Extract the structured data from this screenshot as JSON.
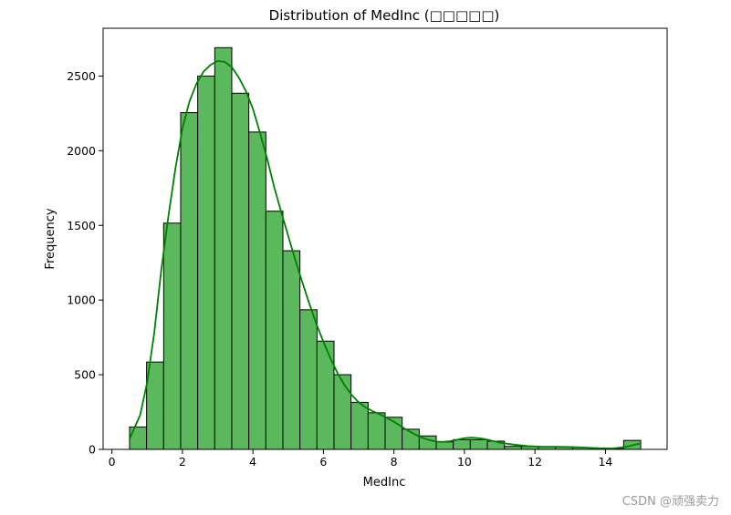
{
  "chart_data": {
    "type": "bar",
    "title": "Distribution of MedInc (□□□□□)",
    "xlabel": "MedInc",
    "ylabel": "Frequency",
    "xlim": [
      -0.25,
      15.75
    ],
    "ylim": [
      0,
      2820
    ],
    "xticks": [
      0,
      2,
      4,
      6,
      8,
      10,
      12,
      14
    ],
    "yticks": [
      0,
      500,
      1000,
      1500,
      2000,
      2500
    ],
    "bins": [
      {
        "x0": 0.5,
        "x1": 0.983,
        "count": 150
      },
      {
        "x0": 0.983,
        "x1": 1.467,
        "count": 585
      },
      {
        "x0": 1.467,
        "x1": 1.95,
        "count": 1515
      },
      {
        "x0": 1.95,
        "x1": 2.433,
        "count": 2255
      },
      {
        "x0": 2.433,
        "x1": 2.917,
        "count": 2500
      },
      {
        "x0": 2.917,
        "x1": 3.4,
        "count": 2690
      },
      {
        "x0": 3.4,
        "x1": 3.883,
        "count": 2385
      },
      {
        "x0": 3.883,
        "x1": 4.367,
        "count": 2125
      },
      {
        "x0": 4.367,
        "x1": 4.85,
        "count": 1595
      },
      {
        "x0": 4.85,
        "x1": 5.333,
        "count": 1330
      },
      {
        "x0": 5.333,
        "x1": 5.817,
        "count": 935
      },
      {
        "x0": 5.817,
        "x1": 6.3,
        "count": 725
      },
      {
        "x0": 6.3,
        "x1": 6.783,
        "count": 500
      },
      {
        "x0": 6.783,
        "x1": 7.267,
        "count": 315
      },
      {
        "x0": 7.267,
        "x1": 7.75,
        "count": 245
      },
      {
        "x0": 7.75,
        "x1": 8.233,
        "count": 215
      },
      {
        "x0": 8.233,
        "x1": 8.717,
        "count": 135
      },
      {
        "x0": 8.717,
        "x1": 9.2,
        "count": 90
      },
      {
        "x0": 9.2,
        "x1": 9.683,
        "count": 50
      },
      {
        "x0": 9.683,
        "x1": 10.167,
        "count": 65
      },
      {
        "x0": 10.167,
        "x1": 10.65,
        "count": 65
      },
      {
        "x0": 10.65,
        "x1": 11.133,
        "count": 55
      },
      {
        "x0": 11.133,
        "x1": 11.617,
        "count": 20
      },
      {
        "x0": 11.617,
        "x1": 12.1,
        "count": 20
      },
      {
        "x0": 12.1,
        "x1": 12.583,
        "count": 18
      },
      {
        "x0": 12.583,
        "x1": 13.067,
        "count": 16
      },
      {
        "x0": 13.067,
        "x1": 13.55,
        "count": 12
      },
      {
        "x0": 13.55,
        "x1": 14.033,
        "count": 8
      },
      {
        "x0": 14.033,
        "x1": 14.517,
        "count": 5
      },
      {
        "x0": 14.517,
        "x1": 15.0,
        "count": 60
      }
    ],
    "kde": {
      "x": [
        0.5,
        0.8,
        1.0,
        1.2,
        1.4,
        1.6,
        1.8,
        2.0,
        2.2,
        2.4,
        2.6,
        2.8,
        3.0,
        3.2,
        3.4,
        3.6,
        3.8,
        4.0,
        4.2,
        4.4,
        4.6,
        4.8,
        5.0,
        5.2,
        5.4,
        5.6,
        5.8,
        6.0,
        6.2,
        6.4,
        6.6,
        6.8,
        7.0,
        7.2,
        7.4,
        7.6,
        7.8,
        8.0,
        8.2,
        8.4,
        8.6,
        8.8,
        9.0,
        9.2,
        9.4,
        9.6,
        9.8,
        10.0,
        10.2,
        10.4,
        10.6,
        10.8,
        11.0,
        11.4,
        11.8,
        12.2,
        12.6,
        13.0,
        13.4,
        13.8,
        14.2,
        14.6,
        15.0
      ],
      "y": [
        70,
        230,
        450,
        780,
        1200,
        1560,
        1880,
        2150,
        2330,
        2450,
        2530,
        2575,
        2600,
        2595,
        2560,
        2490,
        2400,
        2280,
        2120,
        1950,
        1760,
        1590,
        1430,
        1270,
        1120,
        975,
        840,
        720,
        610,
        510,
        430,
        365,
        315,
        280,
        255,
        235,
        210,
        185,
        155,
        125,
        100,
        78,
        62,
        52,
        50,
        55,
        65,
        75,
        78,
        75,
        68,
        57,
        45,
        32,
        22,
        18,
        18,
        16,
        12,
        8,
        6,
        18,
        40
      ]
    },
    "bar_fill": "#5cb85c",
    "bar_edge": "#000000",
    "kde_color": "#008000",
    "grid": false,
    "legend": "none"
  },
  "watermark": "CSDN @顽强卖力"
}
